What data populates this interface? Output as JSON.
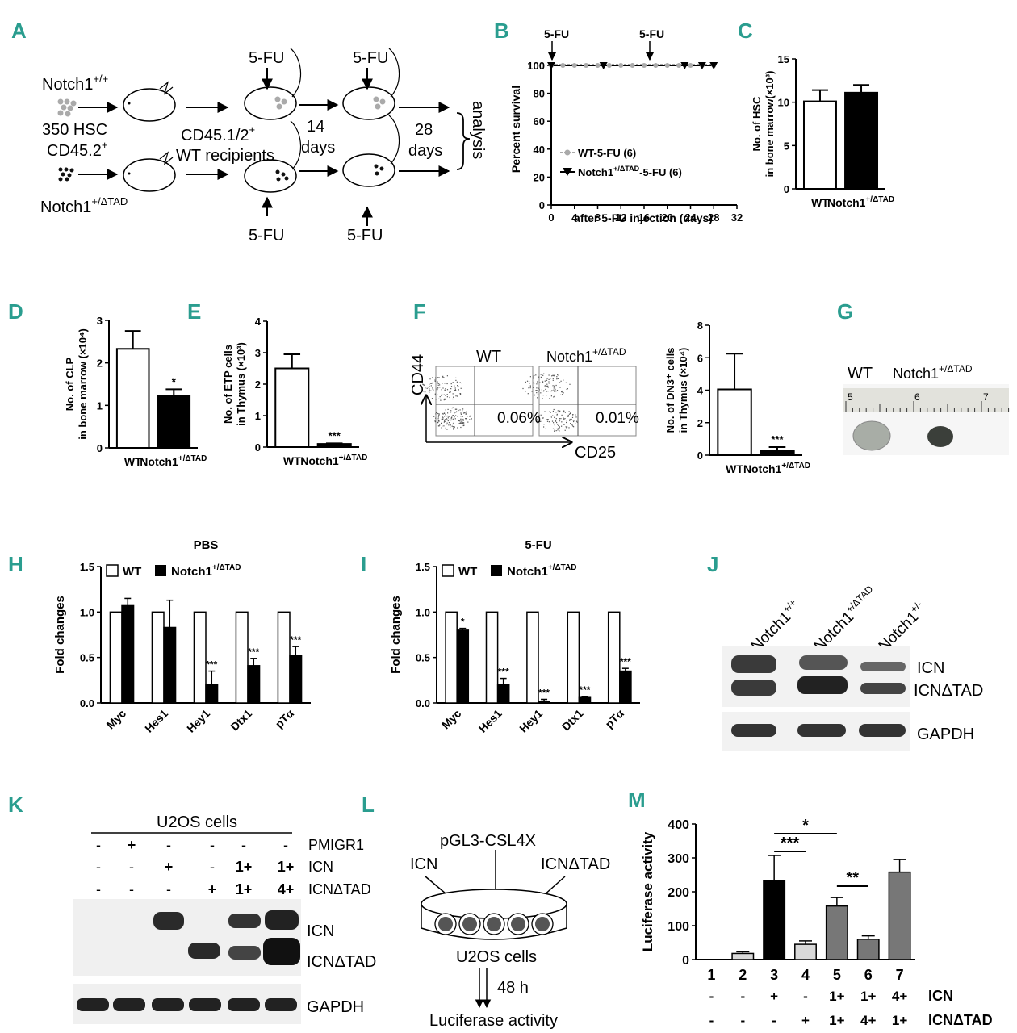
{
  "panel_labels": {
    "A": "A",
    "B": "B",
    "C": "C",
    "D": "D",
    "E": "E",
    "F": "F",
    "G": "G",
    "H": "H",
    "I": "I",
    "J": "J",
    "K": "K",
    "L": "L",
    "M": "M"
  },
  "panel_a": {
    "notch_wt_base": "Notch1",
    "notch_wt_sup": "+/+",
    "hsc_line1": "350 HSC",
    "hsc_line2_base": "CD45.2",
    "hsc_line2_sup": "+",
    "notch_mut_base": "Notch1",
    "notch_mut_sup": "+/ΔTAD",
    "recip_line1_base": "CD45.1/2",
    "recip_line1_sup": "+",
    "recip_line2": "WT recipients",
    "five_fu": "5-FU",
    "days14_num": "14",
    "days_word": "days",
    "days28_num": "28",
    "analysis": "analysis"
  },
  "chart_data": [
    {
      "id": "B",
      "type": "line",
      "ylabel": "Percent survival",
      "xlabel": "after 5-FU injection (days)",
      "xlim": [
        0,
        32
      ],
      "ylim": [
        0,
        100
      ],
      "xticks": [
        "0",
        "4",
        "8",
        "12",
        "16",
        "20",
        "24",
        "28",
        "32"
      ],
      "yticks": [
        "0",
        "20",
        "40",
        "60",
        "80",
        "100"
      ],
      "annotations": [
        "5-FU",
        "5-FU"
      ],
      "series": [
        {
          "name": "WT-5-FU (6)",
          "x": [
            0,
            2,
            4,
            6,
            8,
            10,
            12,
            14,
            16,
            18,
            20,
            22,
            24,
            26,
            28
          ],
          "y": [
            100,
            100,
            100,
            100,
            100,
            100,
            100,
            100,
            100,
            100,
            100,
            100,
            100,
            100,
            100
          ]
        },
        {
          "name_base": "Notch1",
          "name_sup": "+/ΔTAD",
          "name_rest": "-5-FU (6)",
          "x": [
            0,
            9,
            23,
            26,
            28
          ],
          "y": [
            100,
            100,
            100,
            100,
            100
          ]
        }
      ]
    },
    {
      "id": "C",
      "type": "bar",
      "ylabel_1": "No. of HSC",
      "ylabel_2": "in bone marrow(×10³)",
      "ylim": [
        0,
        15
      ],
      "yticks": [
        "0",
        "5",
        "10",
        "15"
      ],
      "categories": [
        "WT",
        "Notch1"
      ],
      "cat_sup": "+/ΔTAD",
      "values": [
        10.1,
        11.1
      ],
      "errors": [
        1.3,
        0.9
      ]
    },
    {
      "id": "D",
      "type": "bar",
      "ylabel_1": "No. of CLP",
      "ylabel_2": "in bone marrow (×10⁴)",
      "ylim": [
        0,
        3
      ],
      "yticks": [
        "0",
        "1",
        "2",
        "3"
      ],
      "categories": [
        "WT",
        "Notch1"
      ],
      "cat_sup": "+/ΔTAD",
      "values": [
        2.33,
        1.23
      ],
      "errors": [
        0.42,
        0.15
      ],
      "sig": [
        "",
        "*"
      ]
    },
    {
      "id": "E",
      "type": "bar",
      "ylabel_1": "No. of ETP cells",
      "ylabel_2": "in Thymus (×10³)",
      "ylim": [
        0,
        4
      ],
      "yticks": [
        "0",
        "1",
        "2",
        "3",
        "4"
      ],
      "categories": [
        "WT",
        "Notch1"
      ],
      "cat_sup": "+/ΔTAD",
      "values": [
        2.5,
        0.1
      ],
      "errors": [
        0.45,
        0.02
      ],
      "sig": [
        "",
        "***"
      ]
    },
    {
      "id": "F",
      "type": "bar",
      "ylabel_1": "No. of DN3⁺ cells",
      "ylabel_2": "in Thymus (×10⁴)",
      "ylim": [
        0,
        8
      ],
      "yticks": [
        "0",
        "2",
        "4",
        "6",
        "8"
      ],
      "categories": [
        "WT",
        "Notch1"
      ],
      "cat_sup": "+/ΔTAD",
      "values": [
        4.05,
        0.25
      ],
      "errors": [
        2.2,
        0.25
      ],
      "sig": [
        "",
        "***"
      ]
    },
    {
      "id": "H",
      "type": "bar",
      "title": "PBS",
      "ylabel": "Fold changes",
      "ylim": [
        0,
        1.5
      ],
      "yticks": [
        "0.0",
        "0.5",
        "1.0",
        "1.5"
      ],
      "categories": [
        "Myc",
        "Hes1",
        "Hey1",
        "Dtx1",
        "pTα"
      ],
      "series": [
        {
          "name": "WT",
          "values": [
            1,
            1,
            1,
            1,
            1
          ],
          "errors": [
            0,
            0,
            0,
            0,
            0
          ]
        },
        {
          "name_base": "Notch1",
          "name_sup": "+/ΔTAD",
          "values": [
            1.07,
            0.83,
            0.2,
            0.41,
            0.52
          ],
          "errors": [
            0.08,
            0.3,
            0.15,
            0.08,
            0.1
          ]
        }
      ],
      "sig": [
        "",
        "",
        "***",
        "***",
        "***"
      ]
    },
    {
      "id": "I",
      "type": "bar",
      "title": "5-FU",
      "ylabel": "Fold changes",
      "ylim": [
        0,
        1.5
      ],
      "yticks": [
        "0.0",
        "0.5",
        "1.0",
        "1.5"
      ],
      "categories": [
        "Myc",
        "Hes1",
        "Hey1",
        "Dtx1",
        "pTα"
      ],
      "series": [
        {
          "name": "WT",
          "values": [
            1,
            1,
            1,
            1,
            1
          ],
          "errors": [
            0,
            0,
            0,
            0,
            0
          ]
        },
        {
          "name_base": "Notch1",
          "name_sup": "+/ΔTAD",
          "values": [
            0.8,
            0.2,
            0.02,
            0.06,
            0.35
          ],
          "errors": [
            0.02,
            0.07,
            0.02,
            0.01,
            0.03
          ]
        }
      ],
      "sig": [
        "*",
        "***",
        "***",
        "***",
        "***"
      ]
    },
    {
      "id": "M",
      "type": "bar",
      "ylabel": "Luciferase activity",
      "ylim": [
        0,
        400
      ],
      "yticks": [
        "0",
        "100",
        "200",
        "300",
        "400"
      ],
      "categories": [
        "1",
        "2",
        "3",
        "4",
        "5",
        "6",
        "7"
      ],
      "values": [
        0,
        18,
        232,
        45,
        158,
        60,
        258
      ],
      "errors": [
        0,
        5,
        75,
        10,
        25,
        10,
        37
      ],
      "colors": [
        "#ffffff",
        "#d9d9d9",
        "#000000",
        "#d9d9d9",
        "#777777",
        "#777777",
        "#777777"
      ],
      "icn_row": [
        "-",
        "-",
        "+",
        "-",
        "1+",
        "1+",
        "4+"
      ],
      "icn_label": "ICN",
      "icndtad_row": [
        "-",
        "-",
        "-",
        "+",
        "1+",
        "4+",
        "1+"
      ],
      "icndtad_label": "ICNΔTAD",
      "brackets": [
        "*",
        "***",
        "**"
      ]
    }
  ],
  "panel_f": {
    "wt": "WT",
    "mut_base": "Notch1",
    "mut_sup": "+/ΔTAD",
    "cd44": "CD44",
    "cd25": "CD25",
    "pct_wt": "0.06%",
    "pct_mut": "0.01%"
  },
  "panel_g": {
    "wt": "WT",
    "mut_base": "Notch1",
    "mut_sup": "+/ΔTAD",
    "ruler_marks": [
      "5",
      "6",
      "7"
    ]
  },
  "panel_j": {
    "lanes": [
      {
        "base": "Notch1",
        "sup": "+/+"
      },
      {
        "base": "Notch1",
        "sup": "+/ΔTAD"
      },
      {
        "base": "Notch1",
        "sup": "+/-"
      }
    ],
    "icn": "ICN",
    "icndtad": "ICNΔTAD",
    "gapdh": "GAPDH"
  },
  "panel_k": {
    "header": "U2OS cells",
    "rows": [
      {
        "label": "PMIGR1",
        "cells": [
          "-",
          "+",
          "-",
          "-",
          "-",
          "-"
        ]
      },
      {
        "label": "ICN",
        "cells": [
          "-",
          "-",
          "+",
          "-",
          "1+",
          "1+"
        ]
      },
      {
        "label": "ICNΔTAD",
        "cells": [
          "-",
          "-",
          "-",
          "+",
          "1+",
          "4+"
        ]
      }
    ],
    "icn": "ICN",
    "icndtad": "ICNΔTAD",
    "gapdh": "GAPDH"
  },
  "panel_l": {
    "reporter": "pGL3-CSL4X",
    "icn": "ICN",
    "icndtad": "ICNΔTAD",
    "cells": "U2OS cells",
    "time": "48 h",
    "readout": "Luciferase activity"
  }
}
